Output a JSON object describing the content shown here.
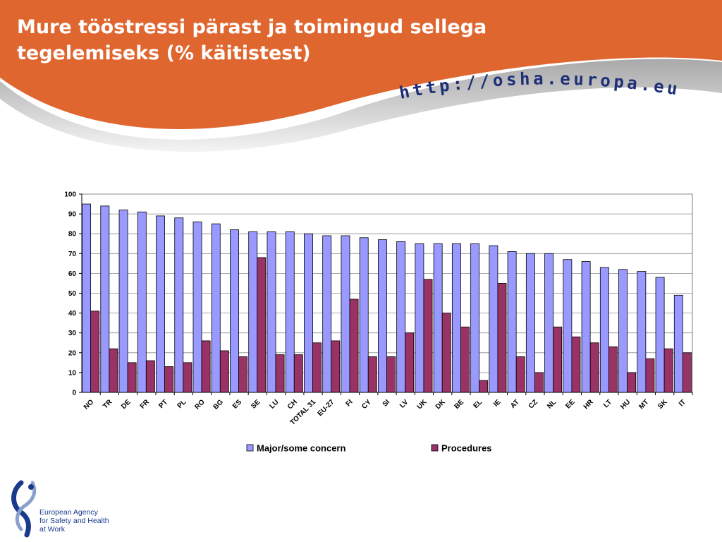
{
  "slide": {
    "title": "Mure tööstressi pärast ja toimingud sellega tegelemiseks (% käitistest)",
    "url": "http://osha.europa.eu"
  },
  "logo": {
    "text": "European Agency\nfor Safety and Health\nat Work"
  },
  "colors": {
    "header_orange": "#e0662f",
    "series_concern": "#9999ff",
    "series_procedures": "#993366",
    "url_text": "#1e2f78"
  },
  "chart_data": {
    "type": "bar",
    "title": "",
    "xlabel": "",
    "ylabel": "",
    "ylim": [
      0,
      100
    ],
    "yticks": [
      0,
      10,
      20,
      30,
      40,
      50,
      60,
      70,
      80,
      90,
      100
    ],
    "grid": true,
    "legend": "bottom",
    "categories": [
      "NO",
      "TR",
      "DE",
      "FR",
      "PT",
      "PL",
      "RO",
      "BG",
      "ES",
      "SE",
      "LU",
      "CH",
      "TOTAL 31",
      "EU-27",
      "FI",
      "CY",
      "SI",
      "LV",
      "UK",
      "DK",
      "BE",
      "EL",
      "IE",
      "AT",
      "CZ",
      "NL",
      "EE",
      "HR",
      "LT",
      "HU",
      "MT",
      "SK",
      "IT"
    ],
    "series": [
      {
        "name": "Major/some concern",
        "color": "#9999ff",
        "values": [
          95,
          94,
          92,
          91,
          89,
          88,
          86,
          85,
          82,
          81,
          81,
          81,
          80,
          79,
          79,
          78,
          77,
          76,
          75,
          75,
          75,
          75,
          74,
          71,
          70,
          70,
          67,
          66,
          63,
          62,
          61,
          58,
          49
        ]
      },
      {
        "name": "Procedures",
        "color": "#993366",
        "values": [
          41,
          22,
          15,
          16,
          13,
          15,
          26,
          21,
          18,
          68,
          19,
          19,
          25,
          26,
          47,
          18,
          18,
          30,
          57,
          40,
          33,
          6,
          55,
          18,
          10,
          33,
          28,
          25,
          23,
          10,
          17,
          22,
          20
        ]
      }
    ]
  }
}
